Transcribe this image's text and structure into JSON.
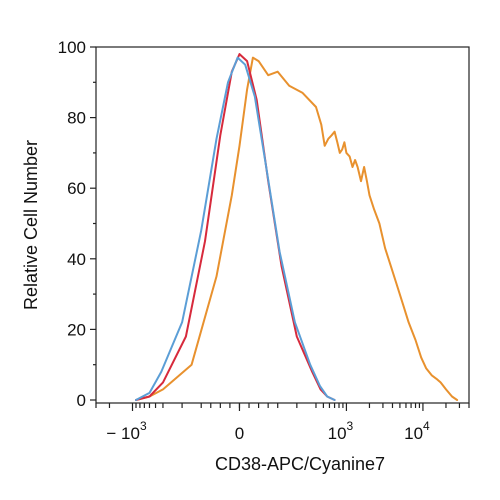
{
  "chart_data": {
    "type": "line",
    "title": "",
    "xlabel": "CD38-APC/Cyanine7",
    "ylabel": "Relative Cell Number",
    "x_scale": "biexponential",
    "x_ticks": [
      {
        "value": -1000,
        "base": "− 10",
        "exp": "3"
      },
      {
        "value": 0,
        "base": "0",
        "exp": ""
      },
      {
        "value": 1000,
        "base": "10",
        "exp": "3"
      },
      {
        "value": 10000,
        "base": "10",
        "exp": "4"
      }
    ],
    "y_ticks": [
      0,
      20,
      40,
      60,
      80,
      100
    ],
    "ylim": [
      0,
      100
    ],
    "xlim": [
      -3000,
      40000
    ],
    "grid": false,
    "legend": "none",
    "series": [
      {
        "color": "#e8912e",
        "points": [
          [
            -900,
            0
          ],
          [
            -600,
            1
          ],
          [
            -400,
            3
          ],
          [
            -250,
            10
          ],
          [
            -120,
            35
          ],
          [
            -40,
            58
          ],
          [
            0,
            72
          ],
          [
            40,
            88
          ],
          [
            70,
            97
          ],
          [
            100,
            96
          ],
          [
            150,
            92
          ],
          [
            200,
            93
          ],
          [
            260,
            89
          ],
          [
            330,
            87
          ],
          [
            400,
            83
          ],
          [
            470,
            78
          ],
          [
            520,
            72
          ],
          [
            580,
            74
          ],
          [
            640,
            75
          ],
          [
            700,
            76
          ],
          [
            760,
            73
          ],
          [
            820,
            70
          ],
          [
            880,
            71
          ],
          [
            940,
            73
          ],
          [
            1000,
            70
          ],
          [
            1100,
            69
          ],
          [
            1200,
            66
          ],
          [
            1300,
            68
          ],
          [
            1400,
            66
          ],
          [
            1550,
            62
          ],
          [
            1700,
            66
          ],
          [
            1850,
            62
          ],
          [
            2000,
            58
          ],
          [
            2300,
            54
          ],
          [
            2700,
            50
          ],
          [
            3200,
            43
          ],
          [
            3800,
            38
          ],
          [
            4500,
            33
          ],
          [
            5500,
            27
          ],
          [
            6500,
            22
          ],
          [
            8000,
            17
          ],
          [
            9500,
            12
          ],
          [
            11000,
            9
          ],
          [
            13000,
            7
          ],
          [
            15000,
            6
          ],
          [
            17000,
            5
          ],
          [
            20000,
            3
          ],
          [
            24000,
            1
          ],
          [
            28000,
            0
          ]
        ]
      },
      {
        "color": "#d72a3c",
        "points": [
          [
            -900,
            0
          ],
          [
            -600,
            1
          ],
          [
            -400,
            5
          ],
          [
            -280,
            18
          ],
          [
            -180,
            45
          ],
          [
            -100,
            75
          ],
          [
            -40,
            93
          ],
          [
            0,
            98
          ],
          [
            40,
            96
          ],
          [
            90,
            85
          ],
          [
            150,
            62
          ],
          [
            220,
            38
          ],
          [
            300,
            18
          ],
          [
            380,
            8
          ],
          [
            460,
            3
          ],
          [
            560,
            1
          ],
          [
            700,
            0
          ]
        ]
      },
      {
        "color": "#5b9ed6",
        "points": [
          [
            -900,
            0
          ],
          [
            -600,
            2
          ],
          [
            -420,
            8
          ],
          [
            -300,
            22
          ],
          [
            -200,
            48
          ],
          [
            -120,
            74
          ],
          [
            -60,
            90
          ],
          [
            -10,
            97
          ],
          [
            30,
            95
          ],
          [
            80,
            86
          ],
          [
            140,
            66
          ],
          [
            210,
            42
          ],
          [
            290,
            22
          ],
          [
            370,
            10
          ],
          [
            450,
            4
          ],
          [
            560,
            1
          ],
          [
            700,
            0
          ]
        ]
      }
    ]
  }
}
